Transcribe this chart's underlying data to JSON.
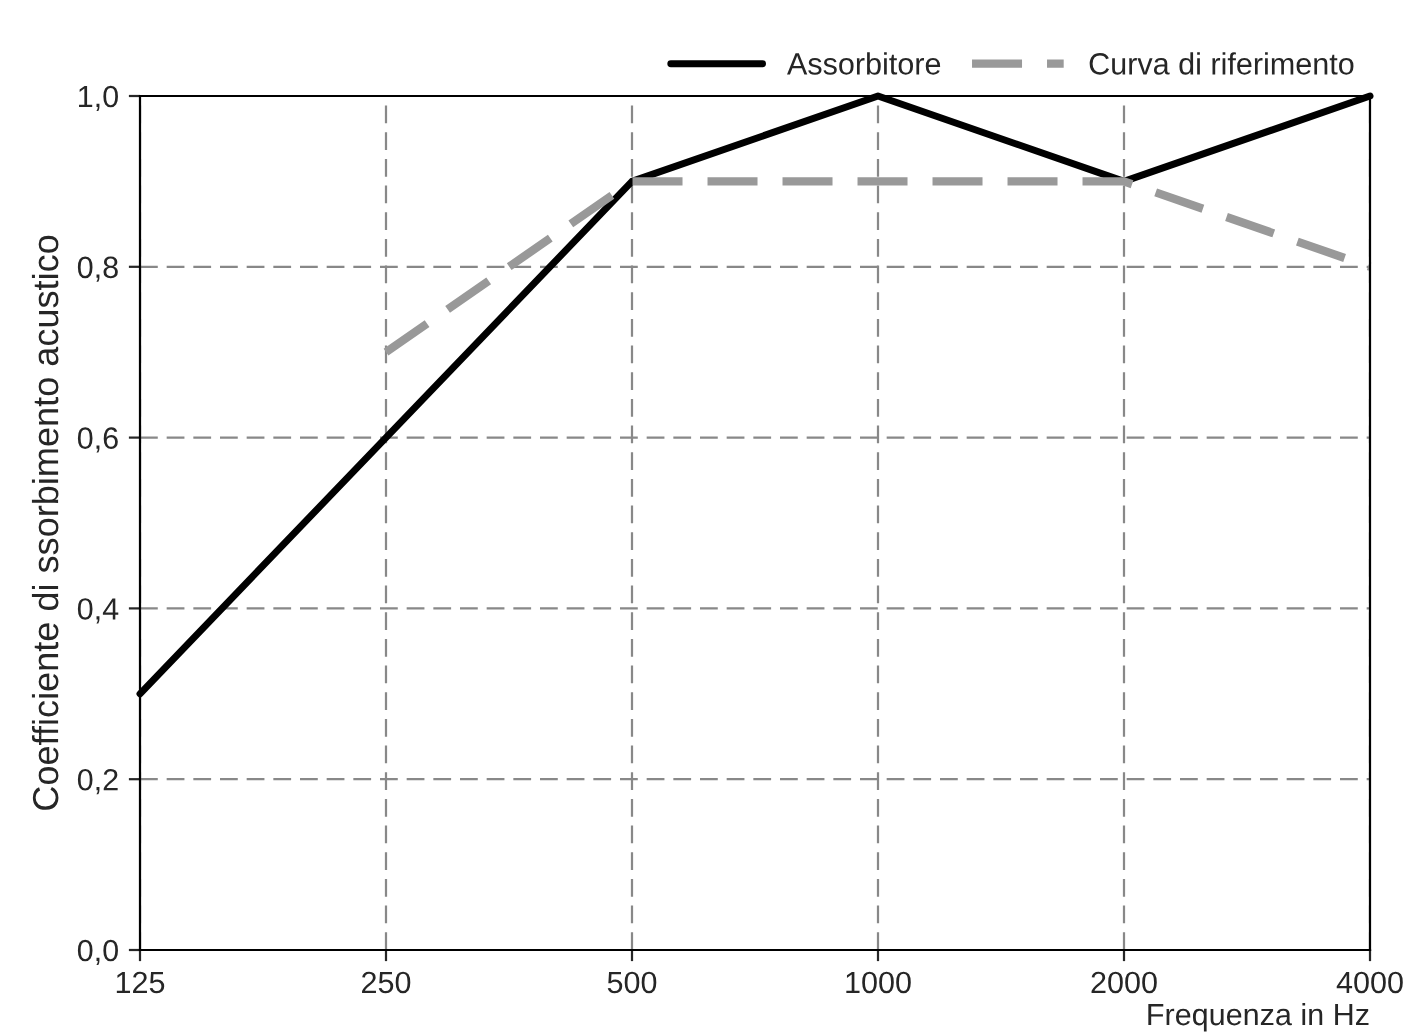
{
  "chart_data": {
    "type": "line",
    "xlabel": "Frequenza in Hz",
    "ylabel": "Coefficiente di ssorbimento acustico",
    "categories": [
      "125",
      "250",
      "500",
      "1000",
      "2000",
      "4000"
    ],
    "series": [
      {
        "name": "Assorbitore",
        "color": "#000000",
        "line_style": "solid",
        "values": [
          0.3,
          0.6,
          0.9,
          1.0,
          0.9,
          1.0
        ]
      },
      {
        "name": "Curva di riferimento",
        "color": "#999999",
        "line_style": "dashed",
        "values": [
          null,
          0.7,
          0.9,
          0.9,
          0.9,
          0.8
        ]
      }
    ],
    "ylim": [
      0,
      1.0
    ],
    "yticks": [
      {
        "value": 0,
        "label": "0,0"
      },
      {
        "value": 0.2,
        "label": "0,2"
      },
      {
        "value": 0.4,
        "label": "0,4"
      },
      {
        "value": 0.6,
        "label": "0,6"
      },
      {
        "value": 0.8,
        "label": "0,8"
      },
      {
        "value": 1.0,
        "label": "1,0"
      }
    ],
    "grid": true,
    "legend": "top right",
    "marker": "none"
  }
}
